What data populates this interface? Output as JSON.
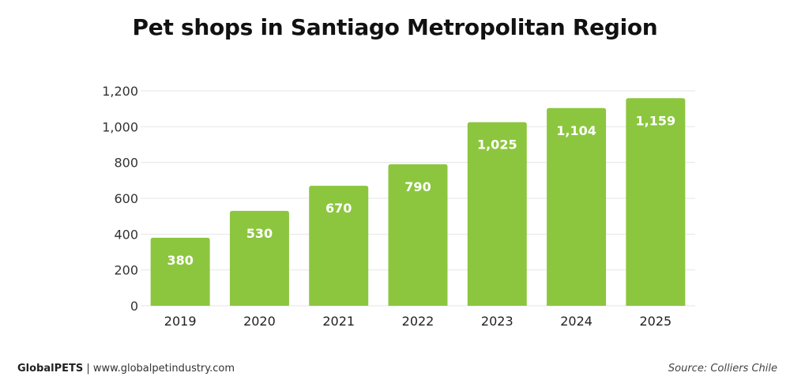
{
  "chart_data": {
    "type": "bar",
    "title": "Pet shops in Santiago Metropolitan Region",
    "categories": [
      "2019",
      "2020",
      "2021",
      "2022",
      "2023",
      "2024",
      "2025"
    ],
    "values": [
      380,
      530,
      670,
      790,
      1025,
      1104,
      1159
    ],
    "value_labels": [
      "380",
      "530",
      "670",
      "790",
      "1,025",
      "1,104",
      "1,159"
    ],
    "y_ticks": [
      0,
      200,
      400,
      600,
      800,
      1000,
      1200
    ],
    "y_tick_labels": [
      "0",
      "200",
      "400",
      "600",
      "800",
      "1,000",
      "1,200"
    ],
    "ylim": [
      0,
      1200
    ],
    "xlabel": "",
    "ylabel": "",
    "grid": true,
    "legend": "none",
    "bar_color": "#8cc63f",
    "grid_color": "#e6e6e6",
    "label_color": "#ffffff"
  },
  "footer": {
    "brand": "GlobalPETS",
    "separator": " | ",
    "url": "www.globalpetindustry.com",
    "source": "Source: Colliers Chile"
  }
}
